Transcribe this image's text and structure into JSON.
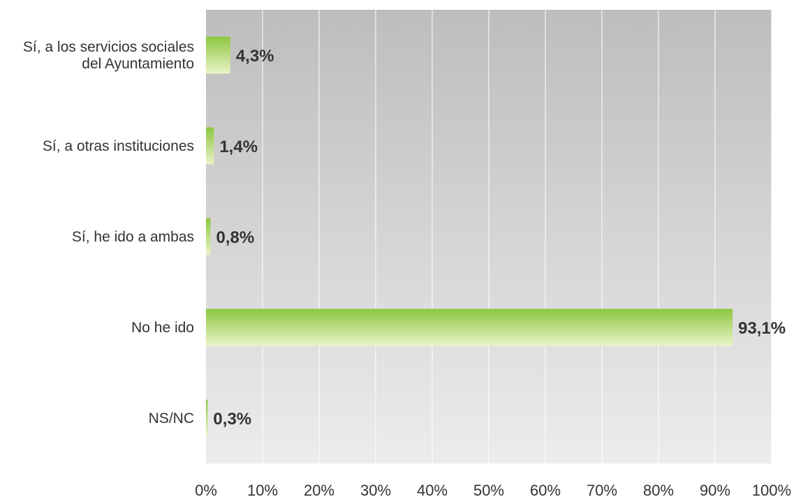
{
  "chart_data": {
    "type": "bar",
    "orientation": "horizontal",
    "categories": [
      [
        "Sí, a los servicios sociales",
        "del Ayuntamiento"
      ],
      [
        "Sí, a otras instituciones"
      ],
      [
        "Sí, he ido a ambas"
      ],
      [
        "No he ido"
      ],
      [
        "NS/NC"
      ]
    ],
    "values": [
      4.3,
      1.4,
      0.8,
      93.1,
      0.3
    ],
    "value_labels": [
      "4,3%",
      "1,4%",
      "0,8%",
      "93,1%",
      "0,3%"
    ],
    "x_ticks": [
      "0%",
      "10%",
      "20%",
      "30%",
      "40%",
      "50%",
      "60%",
      "70%",
      "80%",
      "90%",
      "100%"
    ],
    "xlim": [
      0,
      100
    ],
    "title": "",
    "xlabel": "",
    "ylabel": "",
    "grid": "vertical",
    "legend": "none",
    "colors": {
      "plot_bg_top": "#bdbdbd",
      "plot_bg_bottom": "#ececec",
      "bar_top": "#8cc63f",
      "bar_bottom": "#eaf4c8",
      "grid": "#ffffff"
    }
  }
}
